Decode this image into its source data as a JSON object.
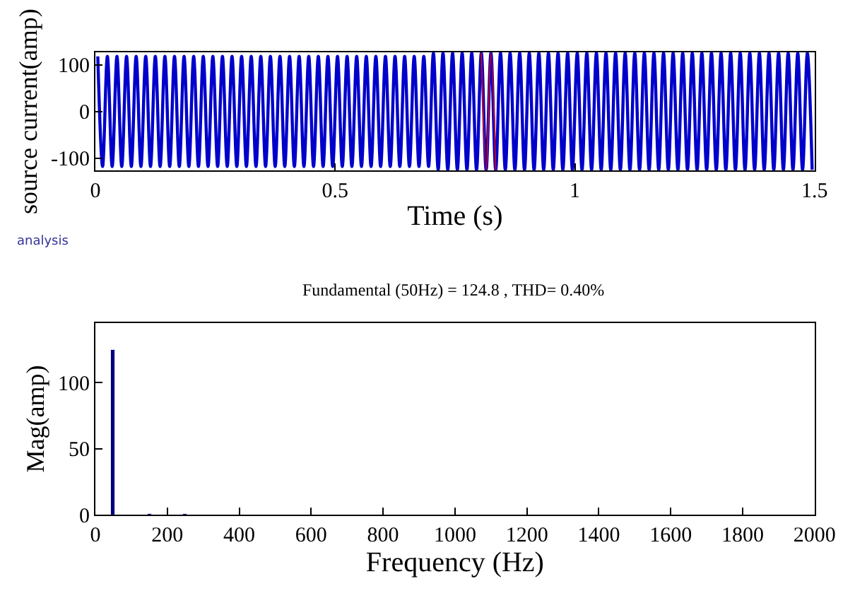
{
  "chart_data": [
    {
      "type": "line",
      "xlabel": "Time (s)",
      "ylabel": "source current(amp)",
      "xlim": [
        0,
        1.5
      ],
      "ylim": [
        -127,
        127
      ],
      "xticks": [
        0,
        0.5,
        1,
        1.5
      ],
      "yticks": [
        -100,
        0,
        100
      ],
      "annotations": [
        "analysis"
      ],
      "series": [
        {
          "color": "#0000cc",
          "x": [
            0.005,
            0.015,
            0.025,
            0.035,
            0.045,
            0.055,
            0.065,
            0.075,
            0.085,
            0.095,
            0.105,
            0.115,
            0.125,
            0.135,
            0.145,
            0.155,
            0.165,
            0.175,
            0.185,
            0.195,
            0.205,
            0.215,
            0.225,
            0.235,
            0.245,
            0.255,
            0.265,
            0.275,
            0.285,
            0.295,
            0.305,
            0.315,
            0.325,
            0.335,
            0.345,
            0.355,
            0.365,
            0.375,
            0.385,
            0.395,
            0.405,
            0.415,
            0.425,
            0.435,
            0.445,
            0.455,
            0.465,
            0.475,
            0.485,
            0.495,
            0.505,
            0.515,
            0.525,
            0.535,
            0.545,
            0.555,
            0.565,
            0.575,
            0.585,
            0.595,
            0.605,
            0.615,
            0.625,
            0.635,
            0.645,
            0.655,
            0.665,
            0.675,
            0.685,
            0.695,
            0.705,
            0.715,
            0.725,
            0.735,
            0.745,
            0.755,
            0.765,
            0.775,
            0.785,
            0.795,
            0.805,
            0.815,
            0.825,
            0.835,
            0.845,
            0.855,
            0.865,
            0.875,
            0.885,
            0.895,
            0.905,
            0.915,
            0.925,
            0.935,
            0.945,
            0.955,
            0.965,
            0.975,
            0.985,
            0.995,
            1.005,
            1.015,
            1.025,
            1.035,
            1.045,
            1.055,
            1.065,
            1.075,
            1.085,
            1.095,
            1.105,
            1.115,
            1.125,
            1.135,
            1.145,
            1.155,
            1.165,
            1.175,
            1.185,
            1.195,
            1.205,
            1.215,
            1.225,
            1.235,
            1.245,
            1.255,
            1.265,
            1.275,
            1.285,
            1.295,
            1.305,
            1.315,
            1.325,
            1.335,
            1.345,
            1.355,
            1.365,
            1.375,
            1.385,
            1.395,
            1.405,
            1.415,
            1.425,
            1.435,
            1.445,
            1.455,
            1.465,
            1.475,
            1.485,
            1.495
          ],
          "values": [
            118,
            -118,
            118,
            -118,
            118,
            -118,
            118,
            -118,
            118,
            -118,
            118,
            -118,
            118,
            -118,
            118,
            -118,
            118,
            -118,
            118,
            -118,
            118,
            -118,
            118,
            -118,
            118,
            -118,
            118,
            -118,
            118,
            -118,
            118,
            -118,
            118,
            -118,
            118,
            -118,
            118,
            -118,
            118,
            -118,
            118,
            -118,
            118,
            -118,
            118,
            -118,
            118,
            -118,
            118,
            -118,
            118,
            -118,
            118,
            -118,
            118,
            -118,
            118,
            -118,
            118,
            -118,
            118,
            -118,
            118,
            -118,
            118,
            -118,
            118,
            -118,
            118,
            -118,
            125,
            -125,
            125,
            -125,
            125,
            -125,
            125,
            -125,
            125,
            -125,
            125,
            -125,
            125,
            -125,
            125,
            -125,
            125,
            -125,
            125,
            -125,
            125,
            -125,
            125,
            -125,
            125,
            -125,
            125,
            -125,
            125,
            -125,
            125,
            -125,
            125,
            -125,
            125,
            -125,
            125,
            -125,
            125,
            -125,
            125,
            -125,
            125,
            -125,
            125,
            -125,
            125,
            -125,
            125,
            -125,
            125,
            -125,
            125,
            -125,
            125,
            -125,
            125,
            -125,
            125,
            -125,
            125,
            -125,
            125,
            -125,
            125,
            -125,
            125,
            -125,
            125,
            -125,
            125,
            -125,
            125,
            -125,
            125,
            -125,
            125,
            -125,
            125,
            -125
          ]
        },
        {
          "color": "#dd0000",
          "x": [
            0.805,
            0.815,
            0.825,
            0.835
          ],
          "values": [
            125,
            -125,
            125,
            -125
          ]
        }
      ]
    },
    {
      "type": "bar",
      "title": "Fundamental (50Hz) = 124.8 , THD= 0.40%",
      "xlabel": "Frequency (Hz)",
      "ylabel": "Mag(amp)",
      "xlim": [
        0,
        2000
      ],
      "ylim": [
        0,
        145
      ],
      "xticks": [
        0,
        200,
        400,
        600,
        800,
        1000,
        1200,
        1400,
        1600,
        1800,
        2000
      ],
      "yticks": [
        0,
        50,
        100
      ],
      "series": [
        {
          "color": "#000080",
          "x": [
            50,
            150,
            250
          ],
          "values": [
            124.8,
            0.5,
            0.3
          ]
        }
      ]
    }
  ]
}
